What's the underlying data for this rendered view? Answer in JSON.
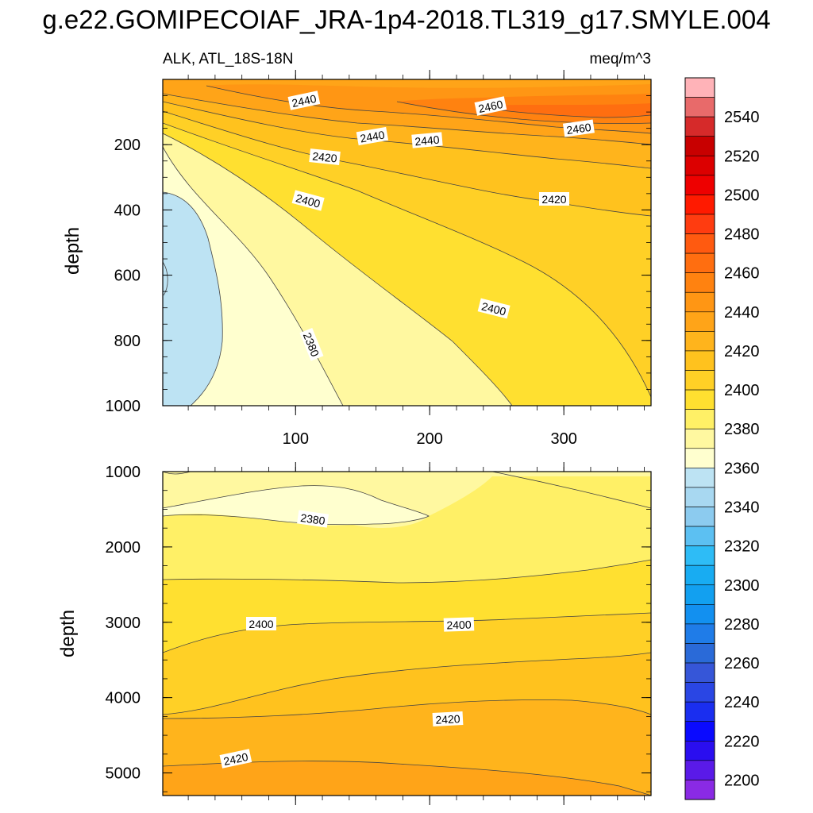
{
  "figure": {
    "title": "g.e22.GOMIPECOIAF_JRA-1p4-2018.TL319_g17.SMYLE.004",
    "subtitle_left": "ALK, ATL_18S-18N",
    "subtitle_right": "meq/m^3"
  },
  "chart_data": [
    {
      "type": "contour",
      "panel": "top",
      "ylabel": "depth",
      "ylim": [
        1000,
        0
      ],
      "xlim": [
        1,
        365
      ],
      "y_ticks": [
        "200",
        "400",
        "600",
        "800",
        "1000"
      ],
      "x_ticks": [
        "100",
        "200",
        "300"
      ],
      "contour_labels": [
        "2440",
        "2460",
        "2440",
        "2440",
        "2460",
        "2420",
        "2420",
        "2400",
        "2400",
        "2380"
      ]
    },
    {
      "type": "contour",
      "panel": "bottom",
      "ylabel": "depth",
      "ylim": [
        5300,
        1000
      ],
      "xlim": [
        1,
        365
      ],
      "y_ticks": [
        "1000",
        "2000",
        "3000",
        "4000",
        "5000"
      ],
      "contour_labels": [
        "2380",
        "2400",
        "2400",
        "2420",
        "2420"
      ]
    }
  ],
  "colorbar": {
    "labels": [
      "2540",
      "2520",
      "2500",
      "2480",
      "2460",
      "2440",
      "2420",
      "2400",
      "2380",
      "2360",
      "2340",
      "2320",
      "2300",
      "2280",
      "2260",
      "2240",
      "2220",
      "2200"
    ],
    "colors": [
      "#ffb3b8",
      "#e86a6a",
      "#d62a2a",
      "#c80000",
      "#dc0000",
      "#ee0000",
      "#ff1a00",
      "#ff3c10",
      "#ff5a10",
      "#ff6e10",
      "#ff8210",
      "#ff9614",
      "#ffa418",
      "#ffb41c",
      "#ffc21e",
      "#ffd026",
      "#ffe030",
      "#fff066",
      "#fff8a0",
      "#ffffcf",
      "#bde3f3",
      "#a8d8f1",
      "#8ccbef",
      "#5cc0f2",
      "#2ebcf6",
      "#18acf2",
      "#12a0f0",
      "#1290f0",
      "#1f7ce8",
      "#2a6ad8",
      "#3656d8",
      "#2a46e4",
      "#1a2ef0",
      "#0a0aff",
      "#2a0ef0",
      "#5a1ae8",
      "#8a2ae4"
    ]
  }
}
